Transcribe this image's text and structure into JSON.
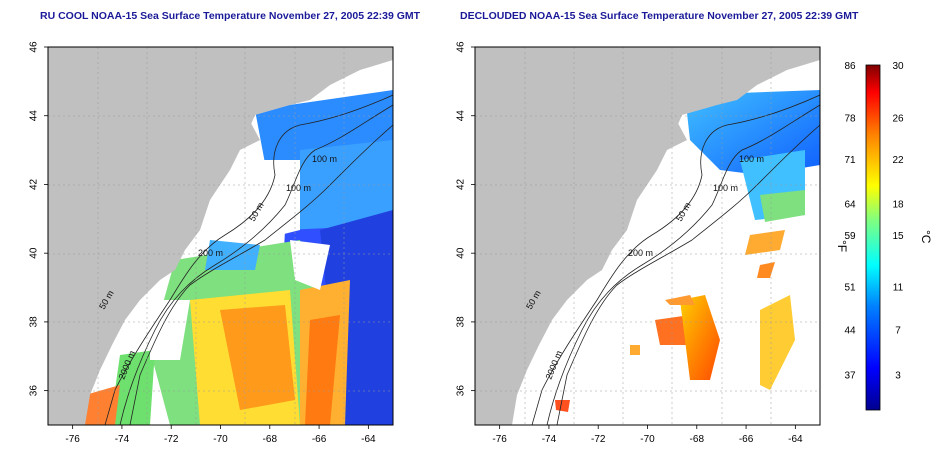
{
  "panels": {
    "left": {
      "title": "RU COOL NOAA-15 Sea Surface Temperature November 27, 2005 22:39 GMT"
    },
    "right": {
      "title": "DECLOUDED NOAA-15 Sea Surface Temperature November 27, 2005 22:39 GMT"
    }
  },
  "axes": {
    "lon_ticks": [
      "-76",
      "-74",
      "-72",
      "-70",
      "-68",
      "-66",
      "-64"
    ],
    "lat_ticks": [
      "46",
      "44",
      "42",
      "40",
      "38",
      "36"
    ],
    "lon_range": [
      -77,
      -63
    ],
    "lat_range": [
      35,
      46
    ]
  },
  "contours": {
    "labels": [
      "100 m",
      "100 m",
      "50 m",
      "200 m",
      "50 m",
      "2000 m"
    ],
    "depths_m": [
      50,
      100,
      200,
      2000
    ]
  },
  "colorbar": {
    "fahrenheit_unit": "°F",
    "celsius_unit": "°C",
    "fahrenheit_ticks": [
      "86",
      "78",
      "71",
      "64",
      "59",
      "51",
      "44",
      "37"
    ],
    "celsius_ticks": [
      "30",
      "26",
      "22",
      "18",
      "15",
      "11",
      "7",
      "3"
    ],
    "range_c": [
      0,
      30
    ]
  },
  "colors": {
    "land": "#c0c0c0",
    "title_text": "#1a1a99",
    "missing": "#ffffff"
  }
}
